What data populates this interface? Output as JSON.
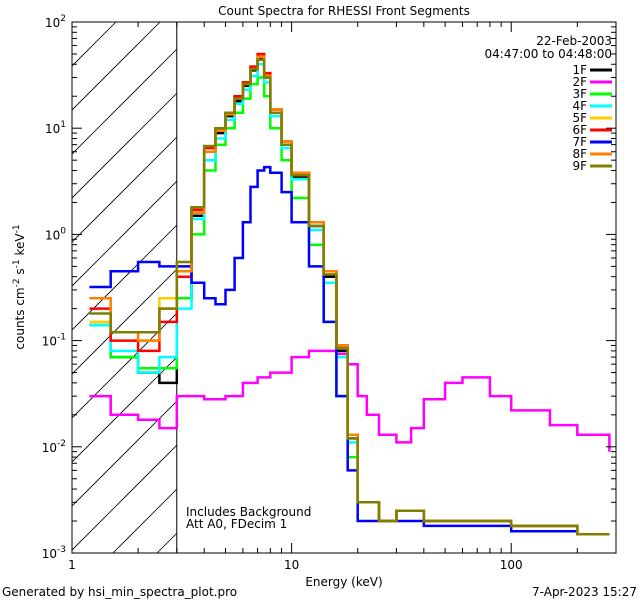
{
  "chart_data": {
    "type": "line",
    "title": "Count Spectra for RHESSI Front Segments",
    "xlabel": "Energy (keV)",
    "ylabel_parts": [
      "counts cm",
      "-2",
      " s",
      "-1",
      " keV",
      "-1"
    ],
    "xscale": "log",
    "yscale": "log",
    "xlim": [
      1,
      300
    ],
    "ylim": [
      0.001,
      100
    ],
    "x_ticks": [
      {
        "value": 1,
        "label": "1"
      },
      {
        "value": 10,
        "label": "10"
      },
      {
        "value": 100,
        "label": "100"
      }
    ],
    "y_ticks": [
      {
        "value": 0.001,
        "base": "10",
        "exp": "-3"
      },
      {
        "value": 0.01,
        "base": "10",
        "exp": "-2"
      },
      {
        "value": 0.1,
        "base": "10",
        "exp": "-1"
      },
      {
        "value": 1,
        "base": "10",
        "exp": "0"
      },
      {
        "value": 10,
        "base": "10",
        "exp": "1"
      },
      {
        "value": 100,
        "base": "10",
        "exp": "2"
      }
    ],
    "date": "22-Feb-2003",
    "time_range": "04:47:00 to 04:48:00",
    "excluded_region_max_kev": 3,
    "annotations": [
      "Includes Background",
      "Att A0, FDecim 1"
    ],
    "series": [
      {
        "name": "1F",
        "color": "#000000",
        "x": [
          1.2,
          1.5,
          2,
          2.5,
          3,
          3.5,
          4,
          4.5,
          5,
          5.5,
          6,
          6.5,
          7,
          7.5,
          8,
          9,
          10,
          12,
          14,
          16,
          18,
          20,
          25,
          30,
          40,
          60,
          100,
          200,
          280
        ],
        "y": [
          0.14,
          0.07,
          0.05,
          0.04,
          0.25,
          1.5,
          6,
          9,
          13,
          18,
          25,
          35,
          45,
          30,
          14,
          7,
          3.5,
          1.2,
          0.4,
          0.08,
          0.012,
          0.003,
          0.002,
          0.0025,
          0.002,
          0.002,
          0.0018,
          0.0015,
          0.0015
        ]
      },
      {
        "name": "2F",
        "color": "#ff00ff",
        "x": [
          1.2,
          1.5,
          2,
          2.5,
          3,
          4,
          5,
          6,
          7,
          8,
          10,
          12,
          14,
          16,
          18,
          20,
          22,
          25,
          30,
          35,
          40,
          50,
          60,
          80,
          100,
          150,
          200,
          280
        ],
        "y": [
          0.03,
          0.02,
          0.018,
          0.015,
          0.03,
          0.028,
          0.03,
          0.04,
          0.045,
          0.05,
          0.07,
          0.08,
          0.08,
          0.075,
          0.06,
          0.03,
          0.02,
          0.013,
          0.011,
          0.015,
          0.028,
          0.04,
          0.045,
          0.03,
          0.022,
          0.016,
          0.013,
          0.009
        ]
      },
      {
        "name": "3F",
        "color": "#00ff00",
        "x": [
          1.2,
          1.5,
          2,
          2.5,
          3,
          3.5,
          4,
          4.5,
          5,
          5.5,
          6,
          6.5,
          7,
          7.5,
          8,
          9,
          10,
          12,
          14,
          16,
          18,
          20,
          25,
          30,
          40,
          60,
          100,
          200,
          280
        ],
        "y": [
          0.14,
          0.07,
          0.055,
          0.055,
          0.25,
          1,
          4,
          7,
          10,
          14,
          19,
          26,
          30,
          20,
          10,
          5,
          2.2,
          0.8,
          0.15,
          0.03,
          0.008,
          0.003,
          0.002,
          0.0025,
          0.002,
          0.002,
          0.0018,
          0.0015,
          0.0015
        ]
      },
      {
        "name": "4F",
        "color": "#00ffff",
        "x": [
          1.2,
          1.5,
          2,
          2.5,
          3,
          3.5,
          4,
          4.5,
          5,
          5.5,
          6,
          6.5,
          7,
          7.5,
          8,
          9,
          10,
          12,
          14,
          16,
          18,
          20,
          25,
          30,
          40,
          60,
          100,
          200,
          280
        ],
        "y": [
          0.14,
          0.08,
          0.05,
          0.07,
          0.2,
          1.4,
          5,
          8,
          12,
          17,
          23,
          31,
          40,
          27,
          13,
          6.5,
          3.3,
          1.1,
          0.35,
          0.07,
          0.011,
          0.003,
          0.002,
          0.0025,
          0.002,
          0.002,
          0.0018,
          0.0015,
          0.0015
        ]
      },
      {
        "name": "5F",
        "color": "#ffcc00",
        "x": [
          1.2,
          1.5,
          2,
          2.5,
          3,
          3.5,
          4,
          4.5,
          5,
          5.5,
          6,
          6.5,
          7,
          7.5,
          8,
          9,
          10,
          12,
          14,
          16,
          18,
          20,
          25,
          30,
          40,
          60,
          100,
          200,
          280
        ],
        "y": [
          0.15,
          0.12,
          0.1,
          0.25,
          0.5,
          1.8,
          6.5,
          10,
          14,
          20,
          27,
          38,
          48,
          32,
          15,
          7.5,
          3.8,
          1.3,
          0.45,
          0.09,
          0.013,
          0.003,
          0.002,
          0.0025,
          0.002,
          0.002,
          0.0018,
          0.0015,
          0.0015
        ]
      },
      {
        "name": "6F",
        "color": "#ff0000",
        "x": [
          1.2,
          1.5,
          2,
          2.5,
          3,
          3.5,
          4,
          4.5,
          5,
          5.5,
          6,
          6.5,
          7,
          7.5,
          8,
          9,
          10,
          12,
          14,
          16,
          18,
          20,
          25,
          30,
          40,
          60,
          100,
          200,
          280
        ],
        "y": [
          0.2,
          0.1,
          0.08,
          0.15,
          0.4,
          1.7,
          6.5,
          10,
          14,
          20,
          27,
          38,
          50,
          33,
          15,
          7.5,
          3.8,
          1.3,
          0.45,
          0.09,
          0.013,
          0.003,
          0.002,
          0.0025,
          0.002,
          0.002,
          0.0018,
          0.0015,
          0.0015
        ]
      },
      {
        "name": "7F",
        "color": "#0000ff",
        "x": [
          1.2,
          1.5,
          2,
          2.5,
          3,
          3.5,
          4,
          4.5,
          5,
          5.5,
          6,
          6.5,
          7,
          7.5,
          8,
          9,
          10,
          12,
          14,
          16,
          18,
          20,
          25,
          30,
          40,
          60,
          100,
          200,
          280
        ],
        "y": [
          0.32,
          0.45,
          0.55,
          0.5,
          0.5,
          0.35,
          0.25,
          0.22,
          0.3,
          0.6,
          1.3,
          2.8,
          4,
          4.3,
          3.8,
          2.5,
          1.3,
          0.5,
          0.15,
          0.03,
          0.006,
          0.002,
          0.002,
          0.002,
          0.0018,
          0.0018,
          0.0016,
          0.0015,
          0.0015
        ]
      },
      {
        "name": "8F",
        "color": "#ff8000",
        "x": [
          1.2,
          1.5,
          2,
          2.5,
          3,
          3.5,
          4,
          4.5,
          5,
          5.5,
          6,
          6.5,
          7,
          7.5,
          8,
          9,
          10,
          12,
          14,
          16,
          18,
          20,
          25,
          30,
          40,
          60,
          100,
          200,
          280
        ],
        "y": [
          0.25,
          0.12,
          0.1,
          0.2,
          0.45,
          1.6,
          6,
          9.5,
          13.5,
          19,
          26,
          36,
          47,
          31,
          15,
          7.5,
          3.8,
          1.3,
          0.45,
          0.09,
          0.013,
          0.003,
          0.002,
          0.0025,
          0.002,
          0.002,
          0.0018,
          0.0015,
          0.0015
        ]
      },
      {
        "name": "9F",
        "color": "#808000",
        "x": [
          1.2,
          1.5,
          2,
          2.5,
          3,
          3.5,
          4,
          4.5,
          5,
          5.5,
          6,
          6.5,
          7,
          7.5,
          8,
          9,
          10,
          12,
          14,
          16,
          18,
          20,
          25,
          30,
          40,
          60,
          100,
          200,
          280
        ],
        "y": [
          0.18,
          0.12,
          0.12,
          0.2,
          0.55,
          1.8,
          6.8,
          10,
          14,
          19,
          26,
          36,
          44,
          30,
          14,
          7,
          3.6,
          1.2,
          0.42,
          0.085,
          0.012,
          0.003,
          0.002,
          0.0025,
          0.002,
          0.002,
          0.0018,
          0.0015,
          0.0015
        ]
      }
    ]
  },
  "footer": {
    "generated_by": "Generated by hsi_min_spectra_plot.pro",
    "timestamp": "7-Apr-2023 15:27"
  }
}
